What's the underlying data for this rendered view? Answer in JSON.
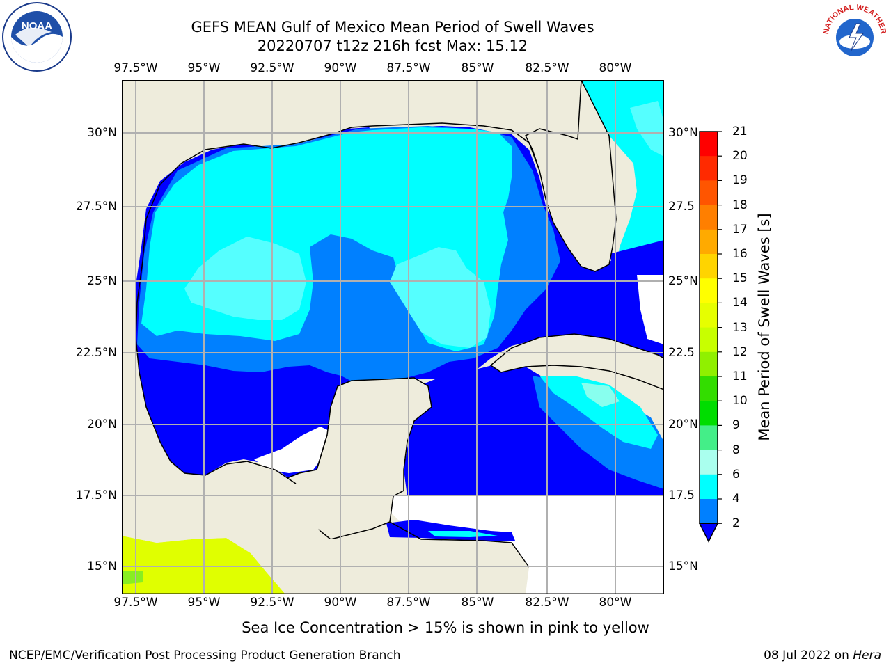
{
  "title": {
    "line1": "GEFS MEAN Gulf of Mexico Mean Period of Swell Waves",
    "line2": "20220707 t12z 216h fcst   Max: 15.12"
  },
  "map": {
    "lon_labels": [
      "97.5°W",
      "95°W",
      "92.5°W",
      "90°W",
      "87.5°W",
      "85°W",
      "82.5°W",
      "80°W"
    ],
    "lat_labels_left": [
      "30°N",
      "27.5°N",
      "25°N",
      "22.5°N",
      "20°N",
      "17.5°N",
      "15°N"
    ],
    "lat_labels_right": [
      "30°N",
      "27.5",
      "25°N",
      "22.5",
      "20°N",
      "17.5",
      "15°N"
    ],
    "colors": {
      "land": "#eeecdc",
      "ocean_2_4": "#0000ff",
      "ocean_4_6": "#0080ff",
      "ocean_6_8": "#00ffff",
      "ocean_8_9": "#55ffff",
      "ocean_9_10": "#88ffee",
      "pacific": "#e0ff00"
    }
  },
  "colorbar": {
    "title": "Mean Period of Swell Waves [s]",
    "ticks": [
      "21",
      "20",
      "19",
      "18",
      "17",
      "16",
      "15",
      "14",
      "13",
      "12",
      "11",
      "10",
      "9",
      "8",
      "6",
      "4",
      "2"
    ],
    "colors": [
      "#ff0000",
      "#ff2000",
      "#ff4500",
      "#ff6a00",
      "#ff8c00",
      "#ffb000",
      "#ffd000",
      "#ffff00",
      "#e6ff00",
      "#c8ff00",
      "#99ff00",
      "#55ee00",
      "#00dd00",
      "#44ff88",
      "#aaffee",
      "#66ffff",
      "#00ffff",
      "#0080ff",
      "#0000ff"
    ]
  },
  "bottom_note": "Sea Ice Concentration > 15% is shown in pink to yellow",
  "footer": {
    "left": "NCEP/EMC/Verification Post Processing Product Generation Branch",
    "date": "08 Jul 2022 on ",
    "machine": "Hera"
  },
  "logos": {
    "noaa_text": "NOAA",
    "nws_text": "NATIONAL WEATHER SERVICE"
  }
}
